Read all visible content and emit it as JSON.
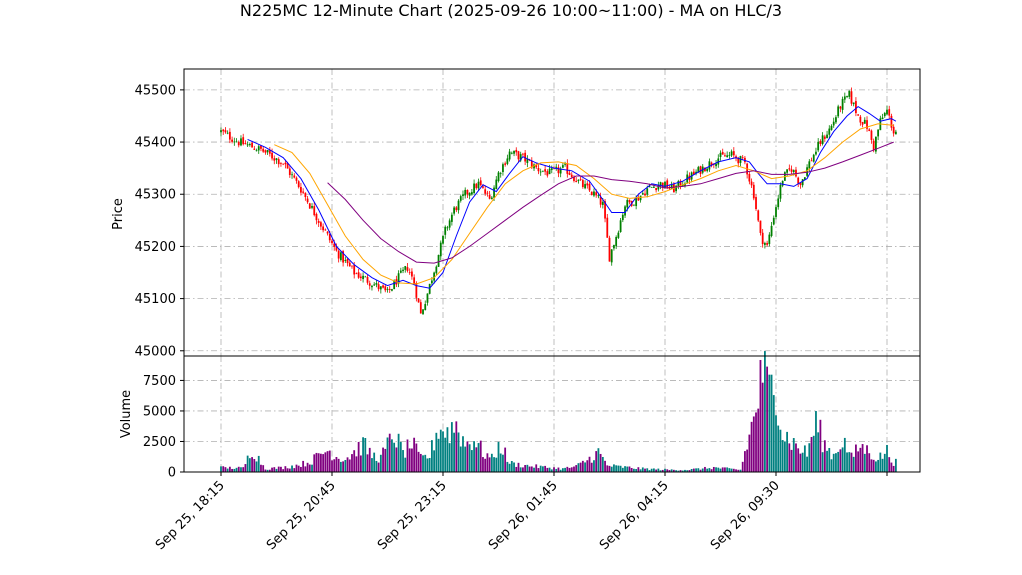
{
  "chart_data": {
    "type": "candlestick",
    "title": "N225MC 12-Minute Chart (2025-09-26 10:00~11:00) - MA on HLC/3",
    "price_panel": {
      "ylabel": "Price",
      "ylim": [
        44990,
        45540
      ],
      "yticks": [
        45000,
        45100,
        45200,
        45300,
        45400,
        45500
      ],
      "ytick_labels": [
        "45000",
        "45100",
        "45200",
        "45300",
        "45400",
        "45500"
      ],
      "grid": true,
      "approx_close_path": [
        [
          0,
          45420
        ],
        [
          8,
          45400
        ],
        [
          18,
          45385
        ],
        [
          28,
          45360
        ],
        [
          36,
          45310
        ],
        [
          44,
          45250
        ],
        [
          52,
          45190
        ],
        [
          60,
          45150
        ],
        [
          68,
          45130
        ],
        [
          75,
          45110
        ],
        [
          80,
          45140
        ],
        [
          84,
          45160
        ],
        [
          87,
          45130
        ],
        [
          90,
          45070
        ],
        [
          93,
          45110
        ],
        [
          97,
          45170
        ],
        [
          101,
          45230
        ],
        [
          105,
          45270
        ],
        [
          110,
          45300
        ],
        [
          116,
          45320
        ],
        [
          121,
          45290
        ],
        [
          125,
          45340
        ],
        [
          130,
          45380
        ],
        [
          136,
          45370
        ],
        [
          142,
          45350
        ],
        [
          148,
          45340
        ],
        [
          155,
          45350
        ],
        [
          162,
          45320
        ],
        [
          168,
          45300
        ],
        [
          172,
          45280
        ],
        [
          175,
          45180
        ],
        [
          178,
          45220
        ],
        [
          182,
          45280
        ],
        [
          187,
          45290
        ],
        [
          192,
          45310
        ],
        [
          198,
          45320
        ],
        [
          204,
          45310
        ],
        [
          210,
          45330
        ],
        [
          217,
          45350
        ],
        [
          224,
          45370
        ],
        [
          230,
          45375
        ],
        [
          236,
          45360
        ],
        [
          240,
          45300
        ],
        [
          243,
          45220
        ],
        [
          246,
          45200
        ],
        [
          249,
          45260
        ],
        [
          253,
          45330
        ],
        [
          257,
          45350
        ],
        [
          261,
          45320
        ],
        [
          265,
          45360
        ],
        [
          270,
          45400
        ],
        [
          275,
          45430
        ],
        [
          279,
          45470
        ],
        [
          283,
          45490
        ],
        [
          287,
          45450
        ],
        [
          291,
          45430
        ],
        [
          294,
          45390
        ],
        [
          297,
          45440
        ],
        [
          300,
          45460
        ],
        [
          303,
          45420
        ]
      ],
      "moving_averages": [
        {
          "name": "MA short",
          "color": "#0000ff",
          "start": 12,
          "values": [
            [
              12,
              45405
            ],
            [
              20,
              45390
            ],
            [
              28,
              45370
            ],
            [
              36,
              45330
            ],
            [
              44,
              45270
            ],
            [
              52,
              45200
            ],
            [
              60,
              45165
            ],
            [
              68,
              45140
            ],
            [
              75,
              45125
            ],
            [
              82,
              45135
            ],
            [
              88,
              45125
            ],
            [
              94,
              45120
            ],
            [
              100,
              45150
            ],
            [
              106,
              45220
            ],
            [
              112,
              45285
            ],
            [
              118,
              45318
            ],
            [
              124,
              45305
            ],
            [
              130,
              45340
            ],
            [
              136,
              45372
            ],
            [
              142,
              45360
            ],
            [
              150,
              45350
            ],
            [
              158,
              45345
            ],
            [
              166,
              45325
            ],
            [
              172,
              45290
            ],
            [
              176,
              45265
            ],
            [
              182,
              45265
            ],
            [
              188,
              45300
            ],
            [
              194,
              45320
            ],
            [
              200,
              45315
            ],
            [
              208,
              45325
            ],
            [
              216,
              45345
            ],
            [
              224,
              45362
            ],
            [
              232,
              45370
            ],
            [
              238,
              45362
            ],
            [
              242,
              45340
            ],
            [
              246,
              45320
            ],
            [
              252,
              45320
            ],
            [
              258,
              45315
            ],
            [
              264,
              45330
            ],
            [
              270,
              45380
            ],
            [
              276,
              45420
            ],
            [
              282,
              45450
            ],
            [
              287,
              45468
            ],
            [
              292,
              45455
            ],
            [
              297,
              45440
            ],
            [
              302,
              45445
            ],
            [
              304,
              45440
            ]
          ]
        },
        {
          "name": "MA medium",
          "color": "#ffa500",
          "start": 24,
          "values": [
            [
              24,
              45395
            ],
            [
              32,
              45380
            ],
            [
              40,
              45340
            ],
            [
              48,
              45280
            ],
            [
              56,
              45220
            ],
            [
              64,
              45175
            ],
            [
              72,
              45145
            ],
            [
              80,
              45130
            ],
            [
              88,
              45128
            ],
            [
              96,
              45140
            ],
            [
              104,
              45175
            ],
            [
              112,
              45225
            ],
            [
              120,
              45275
            ],
            [
              128,
              45320
            ],
            [
              136,
              45345
            ],
            [
              144,
              45360
            ],
            [
              152,
              45362
            ],
            [
              160,
              45355
            ],
            [
              168,
              45330
            ],
            [
              176,
              45300
            ],
            [
              184,
              45292
            ],
            [
              192,
              45295
            ],
            [
              200,
              45305
            ],
            [
              208,
              45318
            ],
            [
              216,
              45330
            ],
            [
              224,
              45345
            ],
            [
              232,
              45355
            ],
            [
              240,
              45345
            ],
            [
              248,
              45330
            ],
            [
              256,
              45335
            ],
            [
              264,
              45345
            ],
            [
              272,
              45370
            ],
            [
              280,
              45400
            ],
            [
              288,
              45425
            ],
            [
              296,
              45435
            ],
            [
              303,
              45432
            ]
          ]
        },
        {
          "name": "MA long",
          "color": "#800080",
          "start": 48,
          "values": [
            [
              48,
              45322
            ],
            [
              56,
              45290
            ],
            [
              64,
              45250
            ],
            [
              72,
              45215
            ],
            [
              80,
              45190
            ],
            [
              88,
              45170
            ],
            [
              96,
              45168
            ],
            [
              104,
              45178
            ],
            [
              112,
              45200
            ],
            [
              120,
              45225
            ],
            [
              128,
              45250
            ],
            [
              136,
              45275
            ],
            [
              144,
              45298
            ],
            [
              152,
              45320
            ],
            [
              160,
              45335
            ],
            [
              168,
              45335
            ],
            [
              176,
              45328
            ],
            [
              184,
              45325
            ],
            [
              192,
              45320
            ],
            [
              200,
              45312
            ],
            [
              208,
              45315
            ],
            [
              216,
              45320
            ],
            [
              224,
              45330
            ],
            [
              232,
              45340
            ],
            [
              240,
              45345
            ],
            [
              248,
              45338
            ],
            [
              256,
              45338
            ],
            [
              264,
              45342
            ],
            [
              272,
              45350
            ],
            [
              280,
              45362
            ],
            [
              288,
              45375
            ],
            [
              296,
              45388
            ],
            [
              303,
              45400
            ]
          ]
        }
      ]
    },
    "volume_panel": {
      "ylabel": "Volume",
      "ylim": [
        0,
        9500
      ],
      "yticks": [
        0,
        2500,
        5000,
        7500
      ],
      "ytick_labels": [
        "0",
        "2500",
        "5000",
        "7500"
      ],
      "grid": true,
      "approx_volume_profile": [
        [
          0,
          400
        ],
        [
          10,
          350
        ],
        [
          14,
          2100
        ],
        [
          20,
          300
        ],
        [
          28,
          400
        ],
        [
          34,
          600
        ],
        [
          40,
          900
        ],
        [
          44,
          1500
        ],
        [
          48,
          2000
        ],
        [
          52,
          1400
        ],
        [
          56,
          1200
        ],
        [
          60,
          1800
        ],
        [
          64,
          2500
        ],
        [
          68,
          1500
        ],
        [
          72,
          1300
        ],
        [
          78,
          3500
        ],
        [
          82,
          1700
        ],
        [
          86,
          2600
        ],
        [
          90,
          1200
        ],
        [
          94,
          1500
        ],
        [
          98,
          4100
        ],
        [
          102,
          3600
        ],
        [
          106,
          4300
        ],
        [
          110,
          2500
        ],
        [
          114,
          3000
        ],
        [
          118,
          1800
        ],
        [
          122,
          1200
        ],
        [
          126,
          2500
        ],
        [
          130,
          800
        ],
        [
          136,
          600
        ],
        [
          142,
          500
        ],
        [
          148,
          400
        ],
        [
          154,
          300
        ],
        [
          160,
          500
        ],
        [
          166,
          1200
        ],
        [
          170,
          1800
        ],
        [
          174,
          600
        ],
        [
          178,
          500
        ],
        [
          184,
          400
        ],
        [
          190,
          300
        ],
        [
          196,
          250
        ],
        [
          202,
          200
        ],
        [
          210,
          200
        ],
        [
          216,
          300
        ],
        [
          222,
          400
        ],
        [
          228,
          300
        ],
        [
          234,
          200
        ],
        [
          240,
          4800
        ],
        [
          244,
          9000
        ],
        [
          247,
          7200
        ],
        [
          250,
          8400
        ],
        [
          253,
          3500
        ],
        [
          256,
          3000
        ],
        [
          260,
          2200
        ],
        [
          264,
          1700
        ],
        [
          268,
          4500
        ],
        [
          272,
          2400
        ],
        [
          276,
          1500
        ],
        [
          280,
          3000
        ],
        [
          284,
          1300
        ],
        [
          288,
          2400
        ],
        [
          292,
          1800
        ],
        [
          296,
          1200
        ],
        [
          300,
          1900
        ],
        [
          303,
          900
        ]
      ]
    },
    "x_axis": {
      "n_bars": 305,
      "ticks": [
        {
          "bar": 0,
          "label": "Sep 25, 18:15"
        },
        {
          "bar": 50,
          "label": "Sep 25, 20:45"
        },
        {
          "bar": 100,
          "label": "Sep 25, 23:15"
        },
        {
          "bar": 150,
          "label": "Sep 26, 01:45"
        },
        {
          "bar": 200,
          "label": "Sep 26, 04:15"
        },
        {
          "bar": 250,
          "label": "Sep 26, 09:30"
        },
        {
          "bar": 300,
          "label": ""
        }
      ]
    },
    "colors": {
      "up": "#008000",
      "down": "#ff0000",
      "volume_up": "#008080",
      "volume_down": "#800080",
      "grid": "#b0b0b0"
    }
  }
}
